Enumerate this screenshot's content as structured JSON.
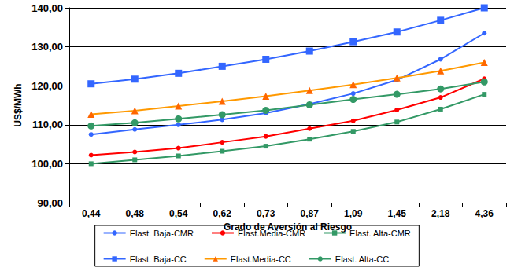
{
  "chart_data": {
    "type": "line",
    "x_label": "Grado de Aversión al Riesgo",
    "y_label": "US$/MWh",
    "categories": [
      "0,44",
      "0,48",
      "0,54",
      "0,62",
      "0,73",
      "0,87",
      "1,09",
      "1,45",
      "2,18",
      "4,36"
    ],
    "ylim": [
      90,
      140
    ],
    "yticks": [
      {
        "value": 90,
        "label": "90,00"
      },
      {
        "value": 100,
        "label": "100,00"
      },
      {
        "value": 110,
        "label": "110,00"
      },
      {
        "value": 120,
        "label": "120,00"
      },
      {
        "value": 130,
        "label": "130,00"
      },
      {
        "value": 140,
        "label": "140,00"
      }
    ],
    "grid": true,
    "legend": "bottom",
    "series": [
      {
        "name": "Elast. Baja-CMR",
        "color": "#3366FF",
        "marker": "circle",
        "values": [
          107.5,
          108.8,
          110.0,
          111.3,
          113.0,
          115.3,
          118.0,
          121.5,
          126.8,
          133.5
        ]
      },
      {
        "name": "Elast.Media-CMR",
        "color": "#FF0000",
        "marker": "circle",
        "values": [
          102.2,
          103.0,
          104.0,
          105.5,
          107.0,
          109.0,
          111.0,
          113.8,
          117.0,
          121.8
        ]
      },
      {
        "name": "Elast. Alta-CMR",
        "color": "#339966",
        "marker": "square",
        "values": [
          100.0,
          101.0,
          102.0,
          103.2,
          104.5,
          106.3,
          108.3,
          110.7,
          114.0,
          117.8
        ]
      },
      {
        "name": "Elast. Baja-CC",
        "color": "#3366FF",
        "marker": "square",
        "values": [
          120.5,
          121.7,
          123.2,
          125.0,
          126.8,
          128.9,
          131.3,
          133.8,
          136.8,
          140.0
        ]
      },
      {
        "name": "Elast.Media-CC",
        "color": "#FF9900",
        "marker": "triangle",
        "values": [
          112.7,
          113.6,
          114.8,
          116.0,
          117.3,
          118.8,
          120.3,
          122.0,
          123.8,
          126.0
        ]
      },
      {
        "name": "Elast. Alta-CC",
        "color": "#339966",
        "marker": "circle",
        "values": [
          109.7,
          110.5,
          111.5,
          112.6,
          113.7,
          115.1,
          116.5,
          117.8,
          119.2,
          121.0
        ]
      }
    ]
  }
}
